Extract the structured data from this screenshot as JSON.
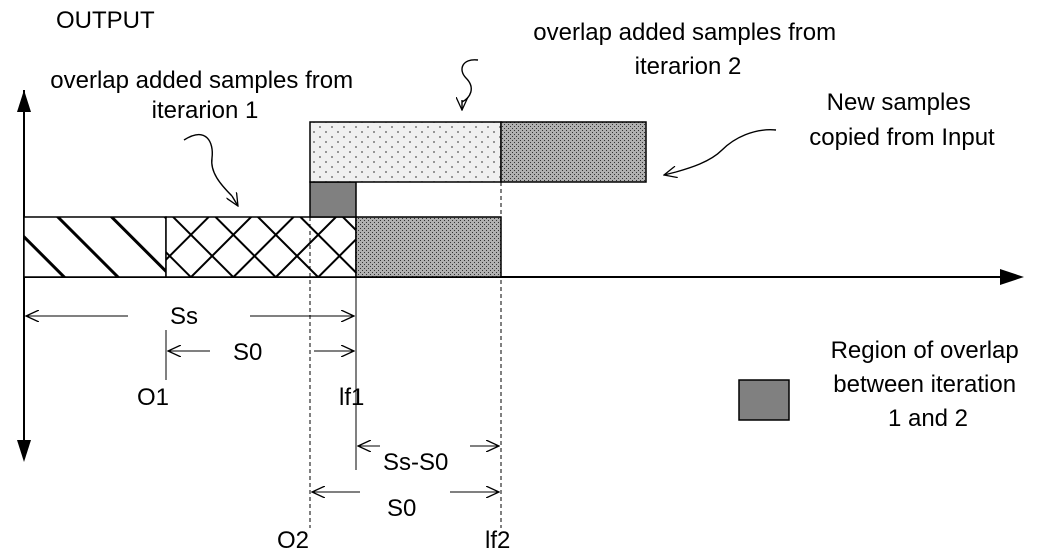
{
  "axis_title": "OUTPUT",
  "labels": {
    "iteration1_caption": [
      "overlap added samples from",
      "iterarion 1"
    ],
    "iteration2_caption": [
      "overlap added samples from",
      "iterarion 2"
    ],
    "new_samples_caption": [
      "New samples",
      "copied from Input"
    ],
    "legend_caption": [
      "Region of overlap",
      "between iteration",
      "1 and 2"
    ]
  },
  "dimensions": {
    "ss": "Ss",
    "s0_upper": "S0",
    "ss_minus_s0": "Ss-S0",
    "s0_lower": "S0"
  },
  "markers": {
    "o1": "O1",
    "if1": "lf1",
    "o2": "O2",
    "if2": "lf2"
  },
  "colors": {
    "overlap_fill": "#808080",
    "stipple_background": "#f0f0f0",
    "dense_fill": "#9a9a9a",
    "line": "#000000"
  }
}
